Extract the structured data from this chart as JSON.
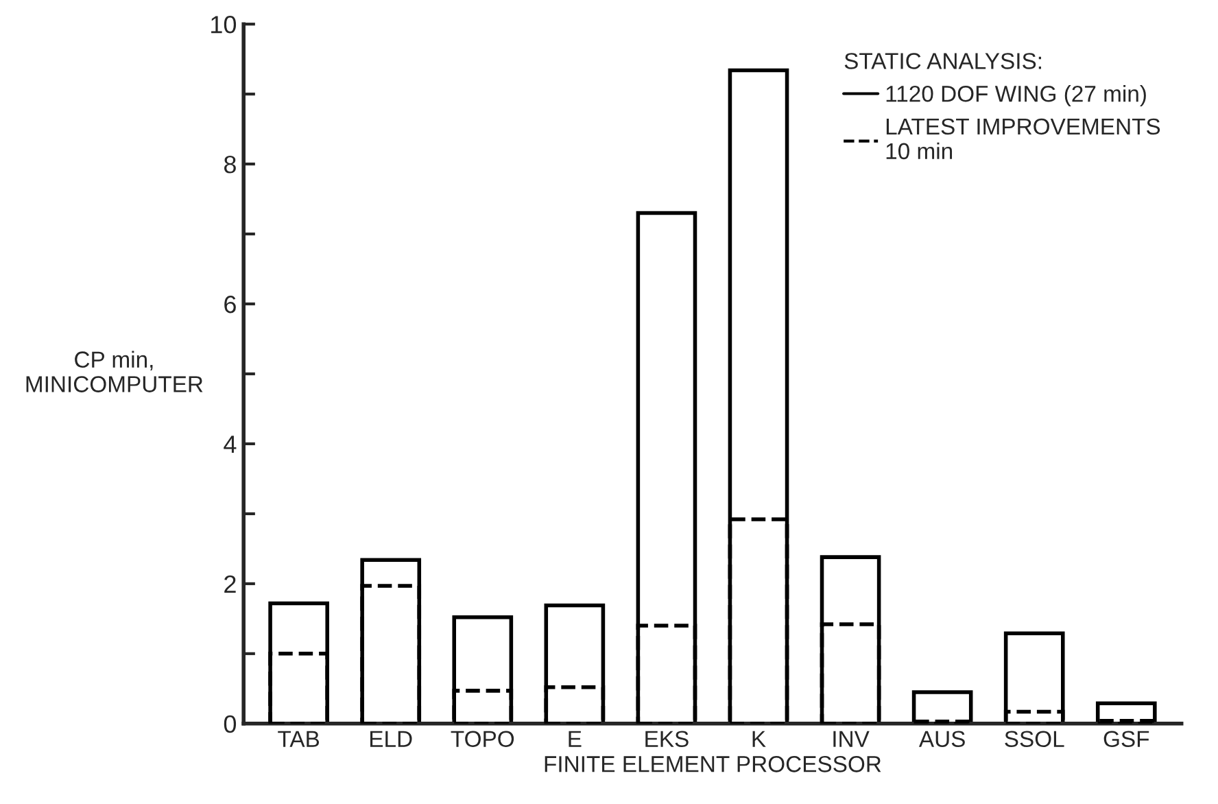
{
  "chart_data": {
    "type": "bar",
    "xlabel": "FINITE ELEMENT PROCESSOR",
    "ylabel": "CP min,\nMINICOMPUTER",
    "legend_title": "STATIC ANALYSIS:",
    "categories": [
      "TAB",
      "ELD",
      "TOPO",
      "E",
      "EKS",
      "K",
      "INV",
      "AUS",
      "SSOL",
      "GSF"
    ],
    "series": [
      {
        "name": "1120 DOF WING (27 min)",
        "color": "#000000",
        "line_style": "solid",
        "values": [
          1.72,
          2.34,
          1.52,
          1.69,
          7.3,
          9.34,
          2.38,
          0.45,
          1.29,
          0.29
        ]
      },
      {
        "name": "LATEST IMPROVEMENTS\n10 min",
        "color": "#000000",
        "line_style": "dashed",
        "values": [
          1.0,
          1.97,
          0.47,
          0.52,
          1.4,
          2.92,
          1.42,
          0.03,
          0.17,
          0.04
        ]
      }
    ],
    "ylim": [
      0,
      10
    ],
    "yticks": [
      0,
      {
        "value": 1,
        "label": null
      },
      2,
      {
        "value": 3,
        "label": null
      },
      4,
      {
        "value": 5,
        "label": null
      },
      6,
      {
        "value": 7,
        "label": null
      },
      8,
      {
        "value": 9,
        "label": null
      },
      10
    ],
    "grid": false,
    "legend": "right"
  }
}
